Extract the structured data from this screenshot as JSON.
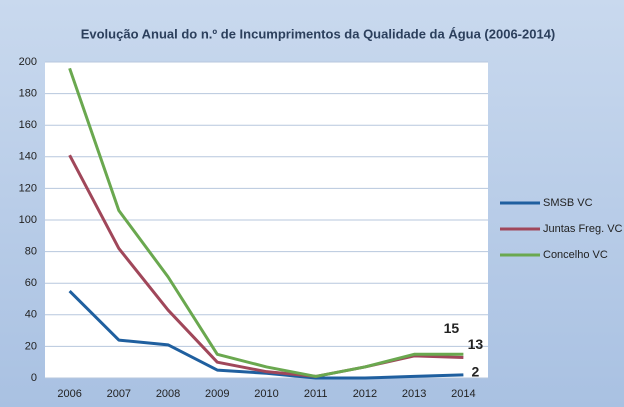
{
  "chart_data": {
    "type": "line",
    "title": "Evolução Anual do n.º de Incumprimentos da Qualidade da Água (2006-2014)",
    "categories": [
      "2006",
      "2007",
      "2008",
      "2009",
      "2010",
      "2011",
      "2012",
      "2013",
      "2014"
    ],
    "series": [
      {
        "name": "SMSB VC",
        "color": "#1f5f9f",
        "values": [
          55,
          24,
          21,
          5,
          3,
          0,
          0,
          1,
          2
        ]
      },
      {
        "name": "Juntas Freg. VC",
        "color": "#a0475a",
        "values": [
          141,
          82,
          43,
          10,
          4,
          1,
          7,
          14,
          13
        ]
      },
      {
        "name": "Concelho VC",
        "color": "#6aa84f",
        "values": [
          196,
          106,
          64,
          15,
          7,
          1,
          7,
          15,
          15
        ]
      }
    ],
    "ylim": [
      0,
      200
    ],
    "yticks": [
      0,
      20,
      40,
      60,
      80,
      100,
      120,
      140,
      160,
      180,
      200
    ],
    "grid": true,
    "legend": "right"
  }
}
